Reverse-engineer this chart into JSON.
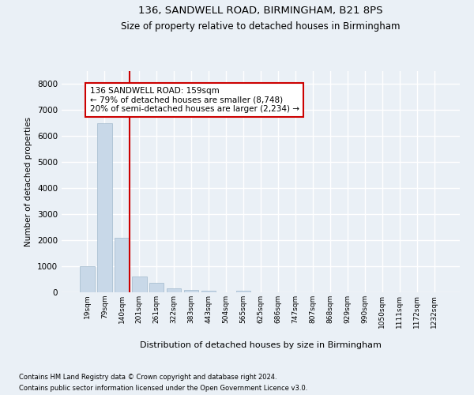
{
  "title1": "136, SANDWELL ROAD, BIRMINGHAM, B21 8PS",
  "title2": "Size of property relative to detached houses in Birmingham",
  "xlabel": "Distribution of detached houses by size in Birmingham",
  "ylabel": "Number of detached properties",
  "footnote1": "Contains HM Land Registry data © Crown copyright and database right 2024.",
  "footnote2": "Contains public sector information licensed under the Open Government Licence v3.0.",
  "annotation_line1": "136 SANDWELL ROAD: 159sqm",
  "annotation_line2": "← 79% of detached houses are smaller (8,748)",
  "annotation_line3": "20% of semi-detached houses are larger (2,234) →",
  "bar_labels": [
    "19sqm",
    "79sqm",
    "140sqm",
    "201sqm",
    "261sqm",
    "322sqm",
    "383sqm",
    "443sqm",
    "504sqm",
    "565sqm",
    "625sqm",
    "686sqm",
    "747sqm",
    "807sqm",
    "868sqm",
    "929sqm",
    "990sqm",
    "1050sqm",
    "1111sqm",
    "1172sqm",
    "1232sqm"
  ],
  "bar_values": [
    1000,
    6500,
    2100,
    600,
    350,
    150,
    100,
    50,
    0,
    50,
    0,
    0,
    0,
    0,
    0,
    0,
    0,
    0,
    0,
    0,
    0
  ],
  "bar_color": "#c8d8e8",
  "bar_edge_color": "#a0b8cc",
  "ylim": [
    0,
    8500
  ],
  "yticks": [
    0,
    1000,
    2000,
    3000,
    4000,
    5000,
    6000,
    7000,
    8000
  ],
  "bg_color": "#eaf0f6",
  "plot_bg_color": "#eaf0f6",
  "grid_color": "#ffffff",
  "annotation_box_facecolor": "#ffffff",
  "annotation_box_edgecolor": "#cc0000",
  "red_line_color": "#cc0000"
}
